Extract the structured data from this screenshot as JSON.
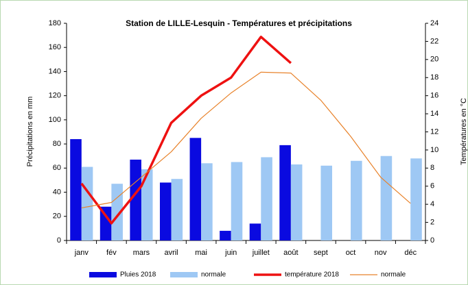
{
  "chart_data": {
    "type": "combo",
    "title": "Station de LILLE-Lesquin - Températures et précipitations",
    "y_label": "Précipitations en mm",
    "y2_label": "Températures en °C",
    "categories": [
      "janv",
      "fév",
      "mars",
      "avril",
      "mai",
      "juin",
      "juillet",
      "août",
      "sept",
      "oct",
      "nov",
      "déc"
    ],
    "series": [
      {
        "name": "Pluies 2018",
        "type": "bar",
        "axis": "y",
        "color": "#0a0ae0",
        "values": [
          84,
          28,
          67,
          48,
          85,
          8,
          14,
          79,
          null,
          null,
          null,
          null
        ]
      },
      {
        "name": "normale",
        "type": "bar",
        "axis": "y",
        "color": "#9ec8f4",
        "values": [
          61,
          47,
          59,
          51,
          64,
          65,
          69,
          63,
          62,
          66,
          70,
          68
        ]
      },
      {
        "name": "température 2018",
        "type": "line",
        "axis": "y2",
        "color": "#ee1111",
        "values": [
          6.3,
          1.9,
          6.0,
          13.0,
          16.0,
          18.0,
          22.5,
          19.6,
          null,
          null,
          null,
          null
        ]
      },
      {
        "name": "normale",
        "type": "line",
        "axis": "y2",
        "color": "#e8822a",
        "values": [
          3.6,
          4.2,
          7.0,
          9.8,
          13.5,
          16.3,
          18.6,
          18.5,
          15.5,
          11.5,
          7.0,
          4.1
        ]
      }
    ],
    "ylim": [
      0,
      180
    ],
    "yticks": [
      0,
      20,
      40,
      60,
      80,
      100,
      120,
      140,
      160,
      180
    ],
    "y2lim": [
      0,
      24
    ],
    "y2ticks": [
      0,
      2,
      4,
      6,
      8,
      10,
      12,
      14,
      16,
      18,
      20,
      22,
      24
    ],
    "legend": "bottom"
  }
}
